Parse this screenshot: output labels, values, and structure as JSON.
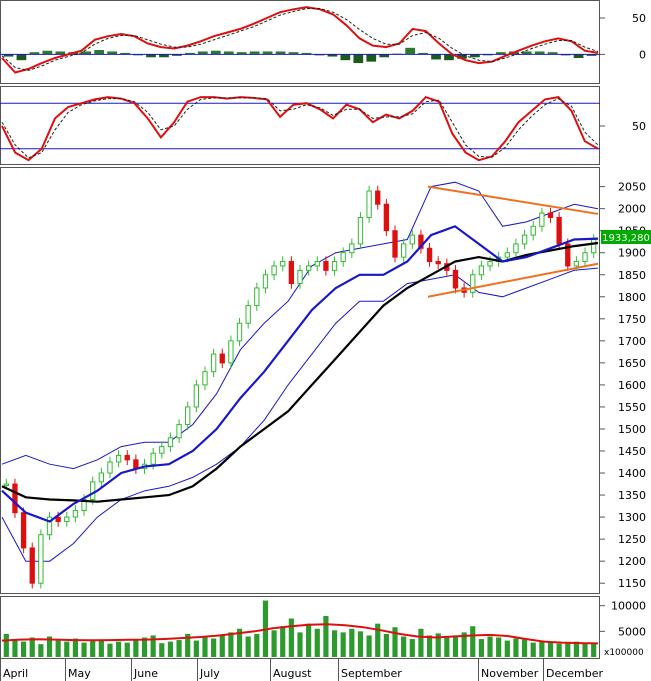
{
  "chart_data": [
    {
      "type": "line",
      "panel": "macd",
      "y_ticks": [
        "50",
        "0"
      ],
      "ylim": [
        -38,
        72
      ],
      "series": [
        {
          "values": [
            -5,
            -25,
            -20,
            -12,
            -5,
            0,
            5,
            20,
            25,
            28,
            25,
            15,
            10,
            8,
            12,
            18,
            25,
            30,
            35,
            42,
            50,
            58,
            62,
            65,
            62,
            55,
            40,
            22,
            12,
            10,
            15,
            35,
            32,
            15,
            0,
            -8,
            -12,
            -10,
            -2,
            5,
            12,
            18,
            22,
            18,
            5,
            2
          ],
          "color": "#dd1010"
        },
        {
          "values": [
            -2,
            -18,
            -22,
            -16,
            -8,
            -3,
            2,
            14,
            22,
            26,
            26,
            20,
            14,
            10,
            10,
            14,
            20,
            26,
            32,
            38,
            46,
            54,
            59,
            63,
            63,
            58,
            48,
            34,
            22,
            14,
            14,
            26,
            30,
            22,
            8,
            -2,
            -8,
            -10,
            -5,
            1,
            8,
            14,
            19,
            19,
            10,
            4
          ],
          "color": "#222222"
        }
      ],
      "histogram": {
        "values": [
          -3,
          -8,
          3,
          5,
          4,
          3,
          4,
          6,
          4,
          2,
          0,
          -4,
          -4,
          -2,
          2,
          4,
          5,
          4,
          3,
          4,
          4,
          4,
          3,
          2,
          -1,
          -3,
          -8,
          -12,
          -10,
          -4,
          1,
          9,
          2,
          -7,
          -8,
          -6,
          -4,
          0,
          3,
          4,
          4,
          4,
          3,
          -1,
          -5,
          -2
        ],
        "pos_color": "#2a7a2a",
        "neg_color": "#1a5a1a"
      }
    },
    {
      "type": "line",
      "panel": "stochastic",
      "y_ticks": [
        "50"
      ],
      "ylim": [
        0,
        100
      ],
      "ref_lines": [
        20,
        80
      ],
      "series": [
        {
          "values": [
            50,
            15,
            5,
            20,
            60,
            75,
            80,
            85,
            88,
            86,
            80,
            60,
            35,
            55,
            82,
            88,
            88,
            86,
            88,
            87,
            85,
            62,
            78,
            80,
            72,
            60,
            78,
            72,
            55,
            65,
            60,
            70,
            88,
            82,
            40,
            15,
            5,
            10,
            30,
            55,
            70,
            85,
            88,
            70,
            30,
            20
          ],
          "color": "#dd1010"
        },
        {
          "values": [
            55,
            25,
            8,
            15,
            45,
            68,
            78,
            83,
            86,
            86,
            82,
            68,
            45,
            50,
            72,
            85,
            87,
            87,
            87,
            87,
            86,
            70,
            72,
            78,
            74,
            64,
            72,
            72,
            60,
            62,
            62,
            66,
            82,
            84,
            55,
            25,
            10,
            9,
            22,
            45,
            63,
            78,
            86,
            76,
            42,
            25
          ],
          "color": "#222222"
        }
      ]
    },
    {
      "type": "line",
      "panel": "price",
      "y_ticks": [
        "2050",
        "2000",
        "1950",
        "1900",
        "1850",
        "1800",
        "1750",
        "1700",
        "1650",
        "1600",
        "1550",
        "1500",
        "1450",
        "1400",
        "1350",
        "1300",
        "1250",
        "1200",
        "1150"
      ],
      "ylim": [
        1130,
        2090
      ],
      "last_price_label": "1933,280",
      "price_series": [
        1375,
        1310,
        1230,
        1150,
        1260,
        1300,
        1290,
        1300,
        1315,
        1340,
        1380,
        1400,
        1425,
        1440,
        1430,
        1410,
        1420,
        1445,
        1460,
        1480,
        1510,
        1550,
        1600,
        1630,
        1670,
        1650,
        1700,
        1740,
        1780,
        1820,
        1850,
        1870,
        1880,
        1830,
        1860,
        1870,
        1880,
        1860,
        1880,
        1900,
        1920,
        1980,
        2040,
        2010,
        1950,
        1890,
        1920,
        1940,
        1910,
        1880,
        1875,
        1860,
        1820,
        1810,
        1850,
        1870,
        1880,
        1890,
        1900,
        1920,
        1940,
        1960,
        1990,
        1980,
        1920,
        1870,
        1880,
        1900,
        1930
      ],
      "series": [
        {
          "name": "",
          "values": [
            1370,
            1345,
            1340,
            1338,
            1335,
            1340,
            1345,
            1350,
            1370,
            1410,
            1460,
            1500,
            1540,
            1600,
            1660,
            1720,
            1780,
            1820,
            1850,
            1880,
            1890,
            1880,
            1895,
            1905,
            1915,
            1922
          ],
          "color": "#000000"
        },
        {
          "name": "",
          "values": [
            1360,
            1310,
            1290,
            1330,
            1360,
            1400,
            1415,
            1420,
            1450,
            1500,
            1570,
            1630,
            1700,
            1770,
            1820,
            1850,
            1850,
            1880,
            1940,
            1960,
            1920,
            1880,
            1890,
            1910,
            1930,
            1932
          ],
          "color": "#1818c8"
        },
        {
          "name": "",
          "values": [
            1420,
            1440,
            1420,
            1410,
            1430,
            1460,
            1470,
            1470,
            1510,
            1580,
            1680,
            1740,
            1790,
            1870,
            1900,
            1910,
            1920,
            1930,
            2050,
            2060,
            2040,
            1960,
            1970,
            1990,
            2010,
            2000
          ],
          "color": "#1818c8"
        },
        {
          "name": "",
          "values": [
            1300,
            1200,
            1200,
            1240,
            1300,
            1340,
            1360,
            1370,
            1390,
            1420,
            1460,
            1520,
            1600,
            1670,
            1740,
            1790,
            1790,
            1830,
            1840,
            1850,
            1810,
            1800,
            1820,
            1840,
            1860,
            1865
          ],
          "color": "#1818c8"
        }
      ],
      "trendlines": [
        {
          "from": [
            0.0,
            2050
          ],
          "to": [
            1.0,
            1988
          ],
          "color": "#f07020"
        },
        {
          "from": [
            0.0,
            1800
          ],
          "to": [
            1.0,
            1875
          ],
          "color": "#f07020"
        }
      ]
    },
    {
      "type": "bar",
      "panel": "volume",
      "y_ticks": [
        "10000",
        "5000"
      ],
      "unit_label": "x100000",
      "ylim": [
        0,
        11500
      ],
      "x_ticks": [
        "April",
        "May",
        "June",
        "July",
        "August",
        "September",
        "November",
        "December"
      ],
      "values": [
        4500,
        3500,
        3000,
        3800,
        2500,
        4000,
        3200,
        3000,
        3600,
        2800,
        3400,
        3200,
        2600,
        3000,
        2800,
        3500,
        3800,
        4200,
        2700,
        3000,
        3300,
        4500,
        3200,
        3800,
        3600,
        4200,
        4800,
        5500,
        4000,
        4500,
        11000,
        5200,
        6000,
        7500,
        4800,
        6500,
        5500,
        8000,
        5200,
        4800,
        5500,
        5000,
        4200,
        6500,
        4500,
        5800,
        4000,
        3500,
        5500,
        4200,
        4600,
        3800,
        4200,
        4800,
        6000,
        3500,
        4000,
        3800,
        3200,
        3600,
        3400,
        2800,
        3200,
        3000,
        2600,
        2800,
        3000,
        2700,
        2800
      ],
      "moving_average": [
        3200,
        3400,
        3450,
        3400,
        3300,
        3250,
        3300,
        3350,
        3400,
        3500,
        3700,
        3900,
        4200,
        4600,
        5000,
        5600,
        6000,
        6300,
        6400,
        6200,
        5800,
        5200,
        4500,
        4000,
        3800,
        4000,
        4200,
        4300,
        4100,
        3500,
        3000,
        2800,
        2700,
        2650
      ],
      "bar_color": "#2d9a2d",
      "ma_color": "#dd1010"
    }
  ]
}
